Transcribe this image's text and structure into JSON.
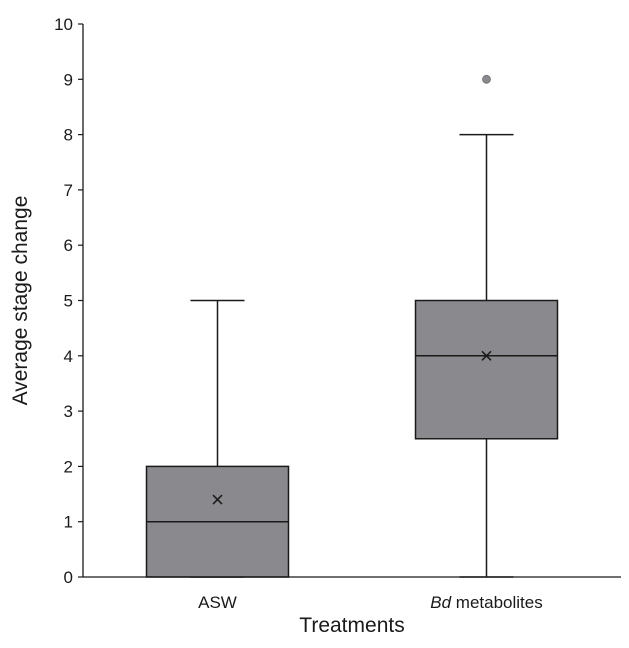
{
  "chart_data": {
    "type": "box",
    "xlabel": "Treatments",
    "ylabel": "Average stage change",
    "ylim": [
      0,
      10
    ],
    "yticks": [
      0,
      1,
      2,
      3,
      4,
      5,
      6,
      7,
      8,
      9,
      10
    ],
    "grid": false,
    "box_color": "#8a8a8e",
    "line_color": "#1a1a1a",
    "outlier_color": "#8a8a8e",
    "categories": [
      {
        "label_parts": [
          {
            "text": "ASW",
            "italic": false
          }
        ]
      },
      {
        "label_parts": [
          {
            "text": "Bd",
            "italic": true
          },
          {
            "text": " metabolites",
            "italic": false
          }
        ]
      }
    ],
    "boxes": [
      {
        "min": 0,
        "q1": 0,
        "median": 1,
        "q3": 2,
        "max": 5,
        "mean": 1.4,
        "outliers": []
      },
      {
        "min": 0,
        "q1": 2.5,
        "median": 4,
        "q3": 5,
        "max": 8,
        "mean": 4,
        "outliers": [
          9
        ]
      }
    ]
  }
}
